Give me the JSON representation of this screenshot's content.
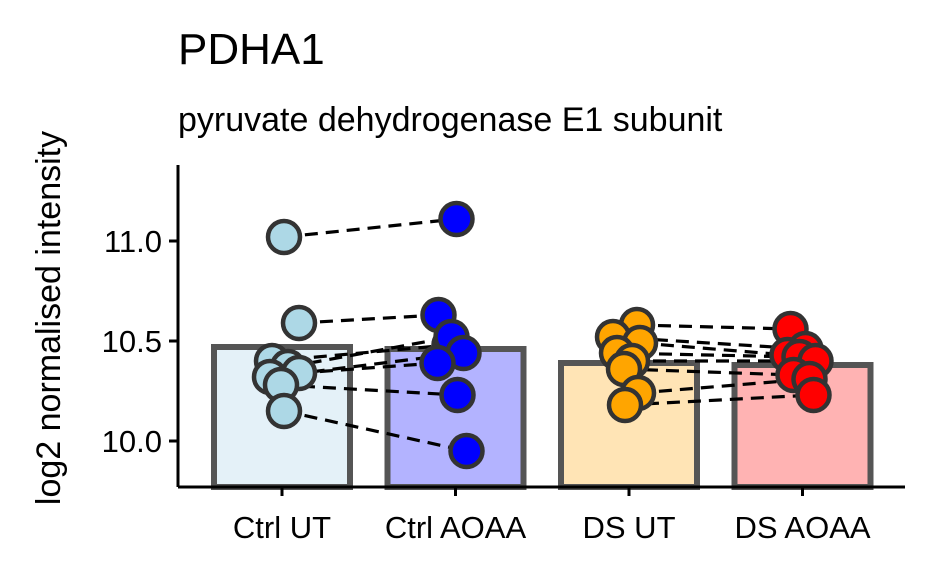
{
  "chart_data": {
    "type": "bar",
    "title": "PDHA1",
    "subtitle": "pyruvate dehydrogenase E1 subunit",
    "ylabel": "log2 normalised intensity",
    "ylim": [
      9.77,
      11.38
    ],
    "yticks": [
      10.0,
      10.5,
      11.0
    ],
    "ytick_labels": [
      "10.0",
      "10.5",
      "11.0"
    ],
    "categories": [
      "Ctrl UT",
      "Ctrl AOAA",
      "DS UT",
      "DS AOAA"
    ],
    "values": [
      10.47,
      10.46,
      10.39,
      10.38
    ],
    "bar_fill": [
      "#e4f1f8",
      "#b3b3ff",
      "#ffe4b5",
      "#ffb3b3"
    ],
    "bar_stroke": "#555555",
    "point_fill": [
      "#add8e6",
      "#0000ff",
      "#ffa500",
      "#ff0000"
    ],
    "point_stroke": "#333333",
    "points": [
      [
        {
          "dx": 0.02,
          "y": 11.02
        },
        {
          "dx": 0.17,
          "y": 10.59
        },
        {
          "dx": -0.1,
          "y": 10.4
        },
        {
          "dx": 0.06,
          "y": 10.37
        },
        {
          "dx": -0.12,
          "y": 10.32
        },
        {
          "dx": 0.17,
          "y": 10.34
        },
        {
          "dx": -0.01,
          "y": 10.28
        },
        {
          "dx": 0.02,
          "y": 10.15
        }
      ],
      [
        {
          "dx": 0.01,
          "y": 11.11
        },
        {
          "dx": -0.17,
          "y": 10.63
        },
        {
          "dx": -0.06,
          "y": 10.48
        },
        {
          "dx": -0.04,
          "y": 10.52
        },
        {
          "dx": 0.08,
          "y": 10.44
        },
        {
          "dx": -0.18,
          "y": 10.39
        },
        {
          "dx": 0.02,
          "y": 10.23
        },
        {
          "dx": 0.11,
          "y": 9.95
        }
      ],
      [
        {
          "dx": 0.08,
          "y": 10.58
        },
        {
          "dx": -0.16,
          "y": 10.52
        },
        {
          "dx": 0.11,
          "y": 10.49
        },
        {
          "dx": -0.12,
          "y": 10.44
        },
        {
          "dx": 0.03,
          "y": 10.4
        },
        {
          "dx": -0.05,
          "y": 10.36
        },
        {
          "dx": 0.09,
          "y": 10.24
        },
        {
          "dx": -0.04,
          "y": 10.18
        }
      ],
      [
        {
          "dx": -0.12,
          "y": 10.56
        },
        {
          "dx": 0.03,
          "y": 10.46
        },
        {
          "dx": -0.15,
          "y": 10.43
        },
        {
          "dx": -0.03,
          "y": 10.42
        },
        {
          "dx": 0.13,
          "y": 10.4
        },
        {
          "dx": -0.09,
          "y": 10.33
        },
        {
          "dx": 0.07,
          "y": 10.31
        },
        {
          "dx": 0.11,
          "y": 10.23
        }
      ]
    ],
    "pairs": [
      [
        [
          0,
          0
        ],
        [
          1,
          0
        ]
      ],
      [
        [
          0,
          1
        ],
        [
          1,
          1
        ]
      ],
      [
        [
          0,
          2
        ],
        [
          1,
          2
        ]
      ],
      [
        [
          0,
          3
        ],
        [
          1,
          3
        ]
      ],
      [
        [
          0,
          4
        ],
        [
          1,
          4
        ]
      ],
      [
        [
          0,
          5
        ],
        [
          1,
          5
        ]
      ],
      [
        [
          0,
          6
        ],
        [
          1,
          6
        ]
      ],
      [
        [
          0,
          7
        ],
        [
          1,
          7
        ]
      ],
      [
        [
          2,
          0
        ],
        [
          3,
          0
        ]
      ],
      [
        [
          2,
          1
        ],
        [
          3,
          1
        ]
      ],
      [
        [
          2,
          2
        ],
        [
          3,
          2
        ]
      ],
      [
        [
          2,
          3
        ],
        [
          3,
          3
        ]
      ],
      [
        [
          2,
          4
        ],
        [
          3,
          4
        ]
      ],
      [
        [
          2,
          5
        ],
        [
          3,
          5
        ]
      ],
      [
        [
          2,
          6
        ],
        [
          3,
          6
        ]
      ],
      [
        [
          2,
          7
        ],
        [
          3,
          7
        ]
      ]
    ]
  }
}
